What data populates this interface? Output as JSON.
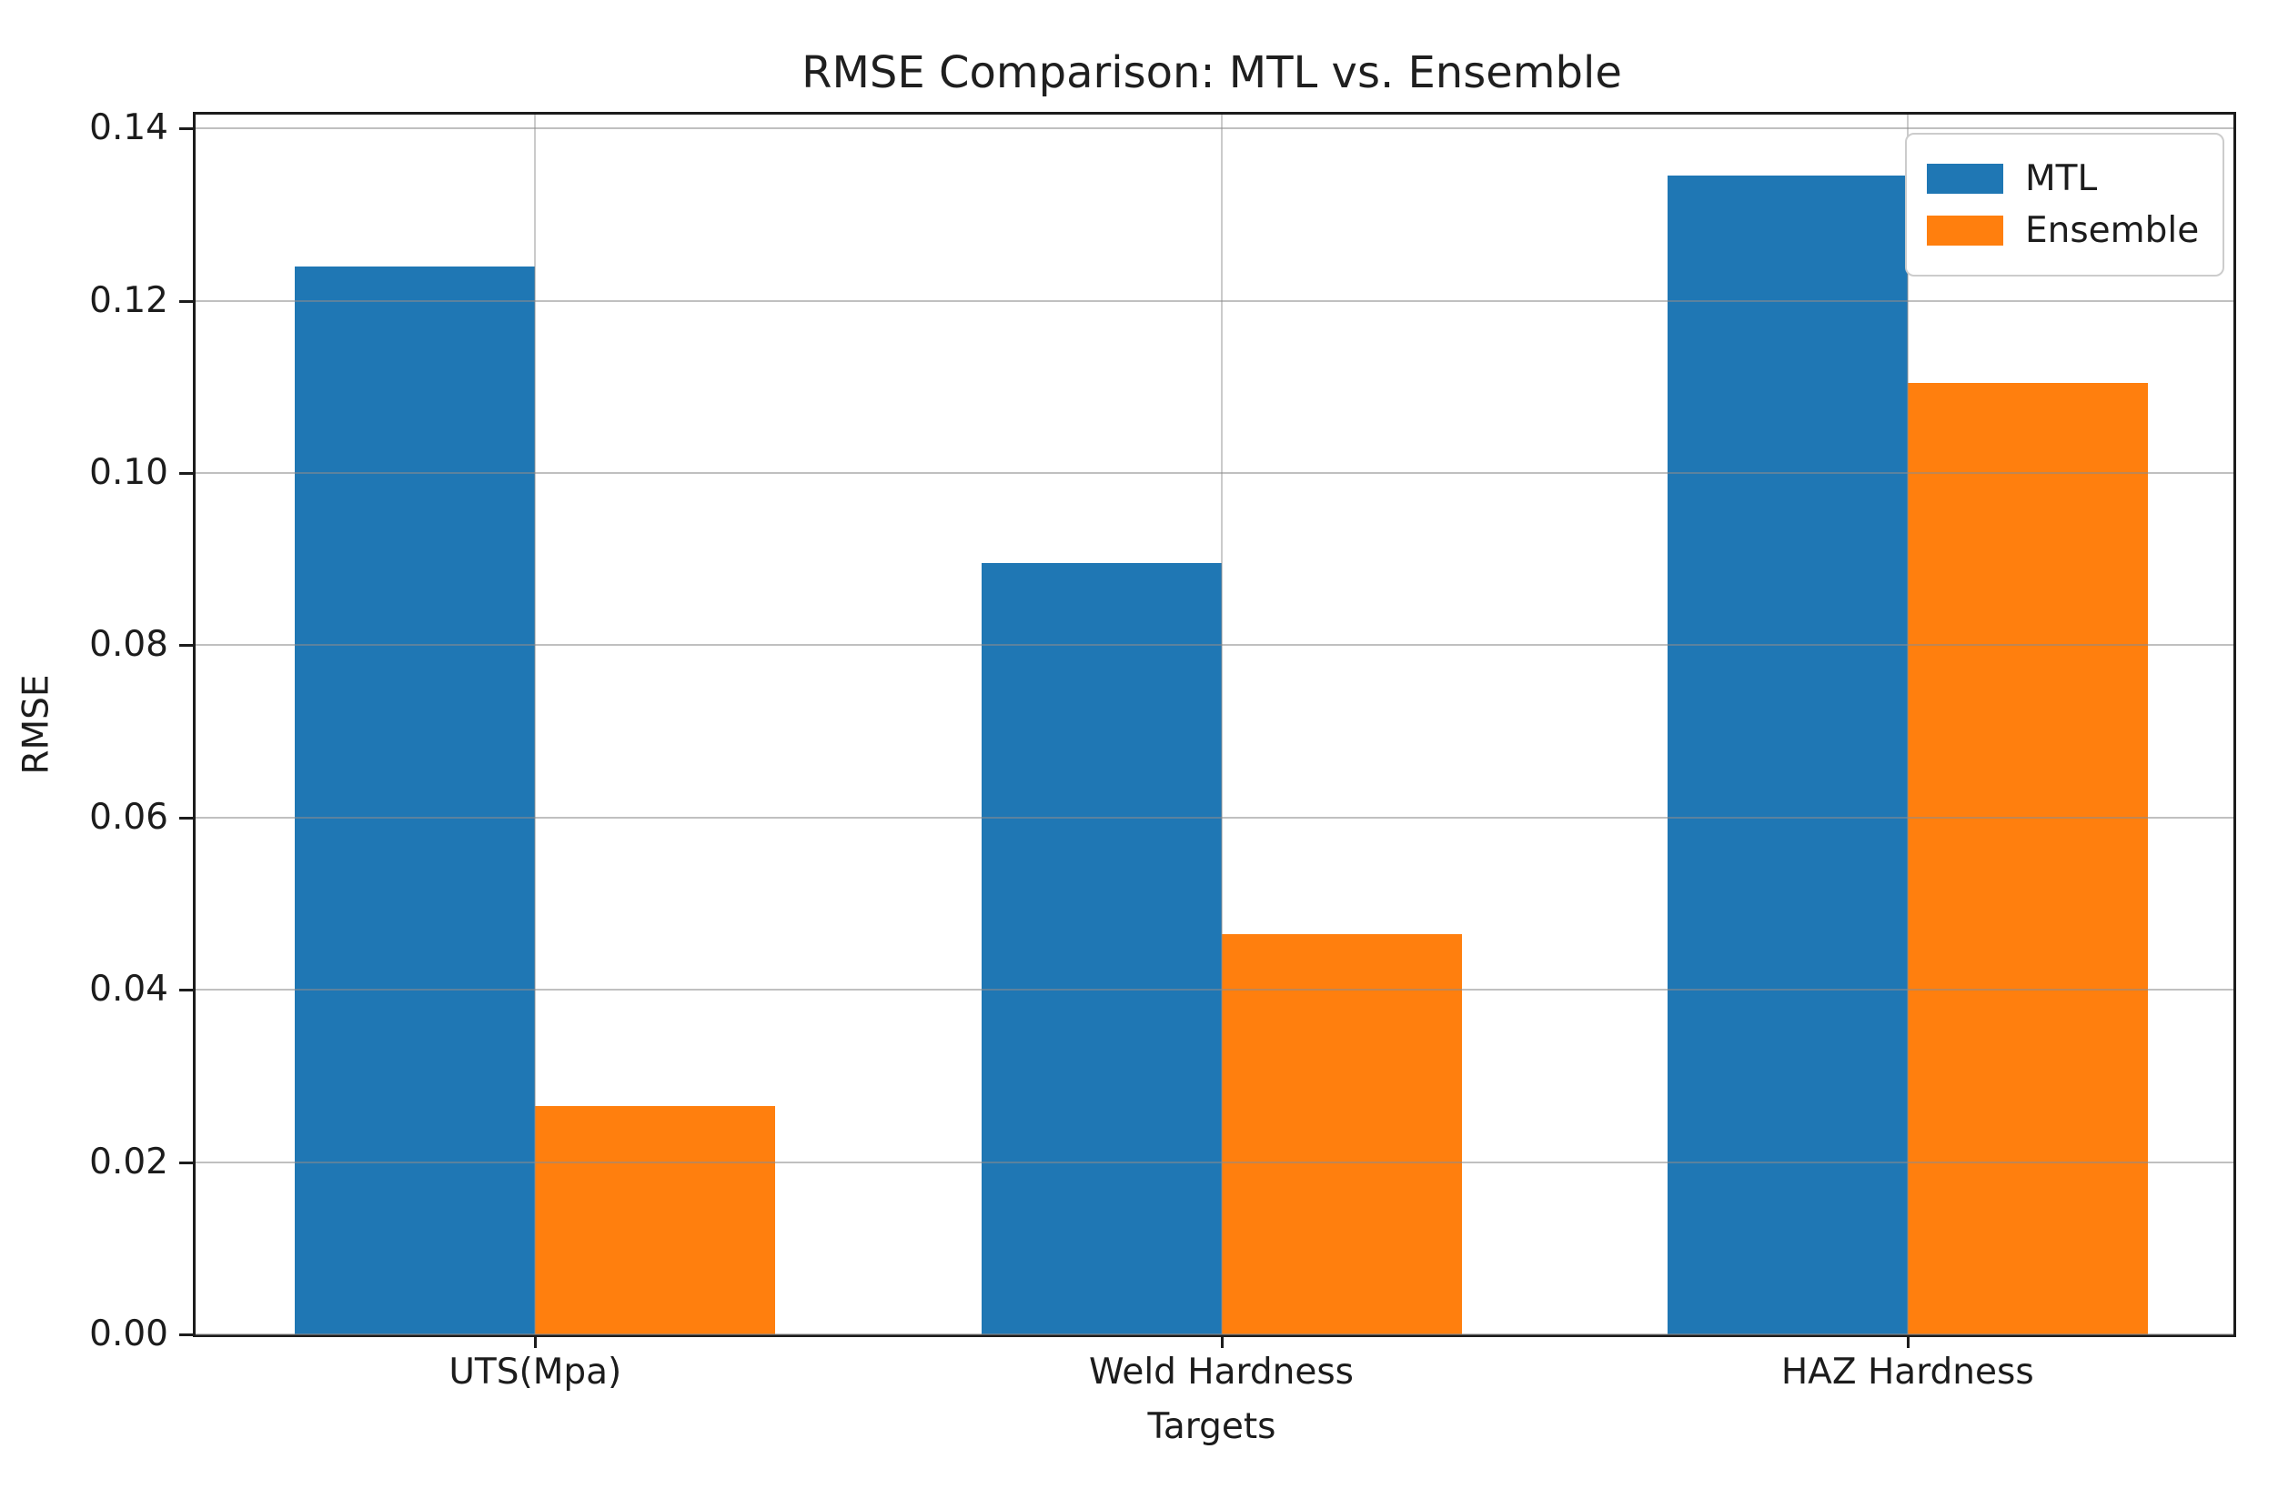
{
  "chart_data": {
    "type": "bar",
    "title": "RMSE Comparison: MTL vs. Ensemble",
    "xlabel": "Targets",
    "ylabel": "RMSE",
    "categories": [
      "UTS(Mpa)",
      "Weld Hardness",
      "HAZ Hardness"
    ],
    "series": [
      {
        "name": "MTL",
        "color": "#1f77b4",
        "values": [
          0.124,
          0.0895,
          0.1345
        ]
      },
      {
        "name": "Ensemble",
        "color": "#ff7f0e",
        "values": [
          0.0265,
          0.0465,
          0.1105
        ]
      }
    ],
    "yticks": [
      0.0,
      0.02,
      0.04,
      0.06,
      0.08,
      0.1,
      0.12,
      0.14
    ],
    "ytick_labels": [
      "0.00",
      "0.02",
      "0.04",
      "0.06",
      "0.08",
      "0.10",
      "0.12",
      "0.14"
    ],
    "ylim": [
      0,
      0.1416
    ],
    "xlim": [
      -0.495,
      2.475
    ],
    "bar_width": 0.35,
    "grid": true,
    "grid_over_bars": true,
    "legend_position": "upper right",
    "axis_color": "#1c1c1c",
    "grid_color": "#8c8c8c",
    "background_color": "#ffffff"
  }
}
